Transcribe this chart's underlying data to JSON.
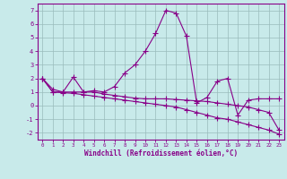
{
  "xlabel": "Windchill (Refroidissement éolien,°C)",
  "x_values": [
    0,
    1,
    2,
    3,
    4,
    5,
    6,
    7,
    8,
    9,
    10,
    11,
    12,
    13,
    14,
    15,
    16,
    17,
    18,
    19,
    20,
    21,
    22,
    23
  ],
  "line1_y": [
    2.0,
    1.2,
    1.0,
    2.1,
    1.0,
    1.1,
    1.0,
    1.4,
    2.4,
    3.0,
    4.0,
    5.3,
    7.0,
    6.8,
    5.1,
    0.2,
    0.6,
    1.8,
    2.0,
    -0.7,
    0.4,
    0.5,
    0.5,
    0.5
  ],
  "line2_y": [
    2.0,
    1.0,
    1.0,
    1.0,
    1.0,
    1.0,
    0.85,
    0.75,
    0.65,
    0.55,
    0.5,
    0.5,
    0.5,
    0.45,
    0.4,
    0.35,
    0.3,
    0.2,
    0.1,
    0.0,
    -0.1,
    -0.3,
    -0.5,
    -1.8
  ],
  "line3_y": [
    2.0,
    1.0,
    0.95,
    0.9,
    0.8,
    0.7,
    0.6,
    0.5,
    0.4,
    0.3,
    0.2,
    0.1,
    0.0,
    -0.1,
    -0.3,
    -0.5,
    -0.7,
    -0.9,
    -1.0,
    -1.2,
    -1.4,
    -1.6,
    -1.8,
    -2.1
  ],
  "line_color": "#880088",
  "bg_color": "#c8eaea",
  "grid_color": "#99bbbb",
  "ylim": [
    -2.5,
    7.5
  ],
  "xlim": [
    -0.5,
    23.5
  ],
  "yticks": [
    -2,
    -1,
    0,
    1,
    2,
    3,
    4,
    5,
    6,
    7
  ],
  "xticks": [
    0,
    1,
    2,
    3,
    4,
    5,
    6,
    7,
    8,
    9,
    10,
    11,
    12,
    13,
    14,
    15,
    16,
    17,
    18,
    19,
    20,
    21,
    22,
    23
  ]
}
